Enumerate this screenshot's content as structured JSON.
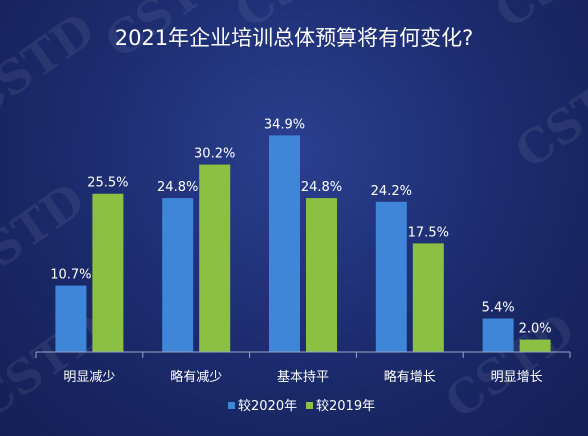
{
  "chart_data": {
    "type": "bar",
    "title": "2021年企业培训总体预算将有何变化?",
    "categories": [
      "明显减少",
      "略有减少",
      "基本持平",
      "略有增长",
      "明显增长"
    ],
    "series": [
      {
        "name": "较2020年",
        "values": [
          10.7,
          24.8,
          34.9,
          24.2,
          5.4
        ],
        "labels": [
          "10.7%",
          "24.8%",
          "34.9%",
          "24.2%",
          "5.4%"
        ],
        "color": "#3f86d9"
      },
      {
        "name": "较2019年",
        "values": [
          25.5,
          30.2,
          24.8,
          17.5,
          2.0
        ],
        "labels": [
          "25.5%",
          "30.2%",
          "24.8%",
          "17.5%",
          "2.0%"
        ],
        "color": "#8cc043"
      }
    ],
    "ylim": [
      0,
      40
    ],
    "grid": false,
    "legend_position": "bottom"
  },
  "watermark": "CSTD",
  "colors": {
    "background": "#1b2a6b",
    "axis": "#9aa4c8",
    "text": "#ffffff"
  }
}
